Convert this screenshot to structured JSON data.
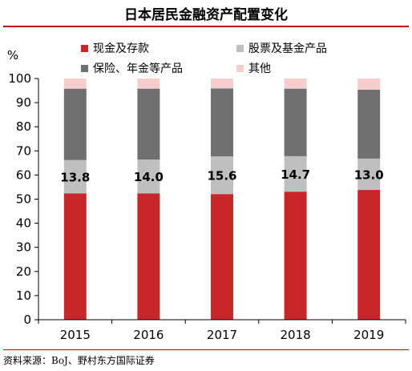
{
  "title": "日本居民金融资产配置变化",
  "source": "资料来源：BoJ、野村东方国际证券",
  "chart_data": {
    "type": "bar",
    "stacked": true,
    "categories": [
      "2015",
      "2016",
      "2017",
      "2018",
      "2019"
    ],
    "series": [
      {
        "name": "现金及存款",
        "values": [
          52.4,
          52.4,
          52.1,
          53.1,
          53.8
        ],
        "color": "#c8272a"
      },
      {
        "name": "股票及基金产品",
        "values": [
          13.8,
          14.0,
          15.6,
          14.7,
          13.0
        ],
        "color": "#bfbfbf"
      },
      {
        "name": "保险、年金等产品",
        "values": [
          29.6,
          29.4,
          28.2,
          28.0,
          28.6
        ],
        "color": "#707070"
      },
      {
        "name": "其他",
        "values": [
          4.2,
          4.2,
          4.1,
          4.2,
          4.6
        ],
        "color": "#f5cdcd"
      }
    ],
    "data_labels": [
      "13.8",
      "14.0",
      "15.6",
      "14.7",
      "13.0"
    ],
    "ylabel": "%",
    "ylim": [
      0,
      100
    ],
    "yticks": [
      "0",
      "10",
      "20",
      "30",
      "40",
      "50",
      "60",
      "70",
      "80",
      "90",
      "100"
    ],
    "legend": "top",
    "grid": false
  }
}
